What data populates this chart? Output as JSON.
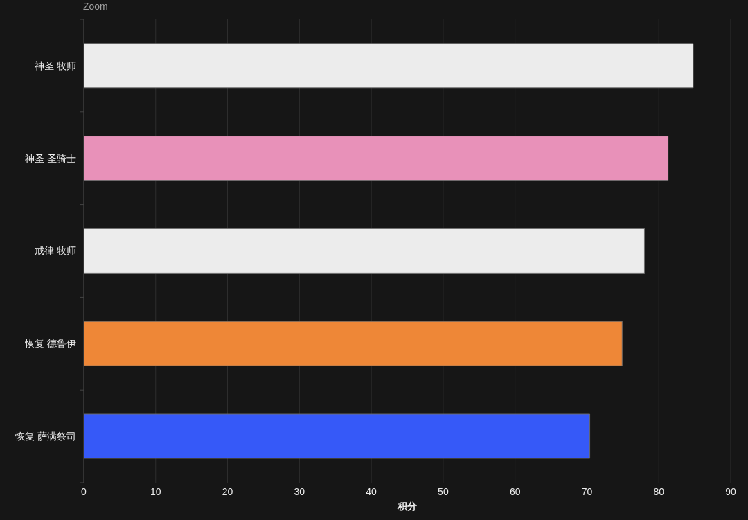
{
  "chart_data": {
    "type": "bar",
    "orientation": "horizontal",
    "categories": [
      "神圣 牧师",
      "神圣 圣骑士",
      "戒律 牧师",
      "恢复 德鲁伊",
      "恢复 萨满祭司"
    ],
    "values": [
      84.8,
      81.3,
      78.0,
      74.9,
      70.4
    ],
    "colors": [
      "#ececec",
      "#e891b9",
      "#ececec",
      "#ee8737",
      "#3659f8"
    ],
    "xlim": [
      0,
      90
    ],
    "xticks": [
      0,
      10,
      20,
      30,
      40,
      50,
      60,
      70,
      80,
      90
    ],
    "xlabel": "积分",
    "grid": "x",
    "annotations": [
      "Zoom"
    ]
  }
}
